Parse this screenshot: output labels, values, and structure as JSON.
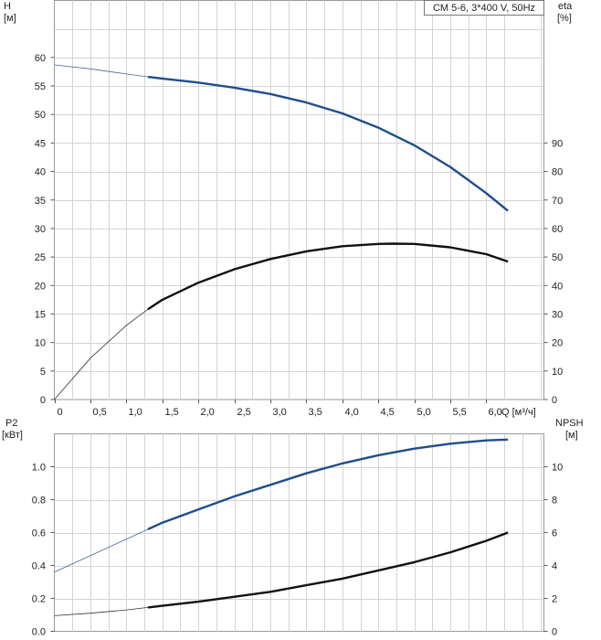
{
  "chart_data": [
    {
      "type": "line",
      "title": "CM 5-6, 3*400 V, 50Hz",
      "left_axis_label": "H",
      "left_axis_unit": "[м]",
      "right_axis_label": "eta",
      "right_axis_unit": "[%]",
      "xlabel": "Q [м³/ч]",
      "xlim": [
        0,
        6.8
      ],
      "x_ticks": [
        "0",
        "0,5",
        "1,0",
        "1,5",
        "2,0",
        "2,5",
        "3,0",
        "3,5",
        "4,0",
        "4,5",
        "5,0",
        "5,5",
        "6,0"
      ],
      "ylim_left": [
        0,
        70
      ],
      "ylim_right": [
        0,
        140
      ],
      "left_ticks": [
        "0",
        "5",
        "10",
        "15",
        "20",
        "25",
        "30",
        "35",
        "40",
        "45",
        "50",
        "55",
        "60"
      ],
      "right_ticks": [
        "0",
        "10",
        "20",
        "30",
        "40",
        "50",
        "60",
        "70",
        "80",
        "90"
      ],
      "grid": true,
      "series": [
        {
          "axis": "left",
          "color": "#1f4e8c",
          "operating_range_start": 1.3,
          "x": [
            0,
            0.5,
            1.0,
            1.3,
            1.5,
            2.0,
            2.5,
            3.0,
            3.5,
            4.0,
            4.5,
            5.0,
            5.5,
            6.0,
            6.3
          ],
          "y": [
            58.7,
            58.0,
            57.1,
            56.6,
            56.3,
            55.6,
            54.7,
            53.6,
            52.1,
            50.2,
            47.7,
            44.6,
            40.8,
            36.2,
            33.1
          ]
        },
        {
          "axis": "right",
          "color": "#111111",
          "operating_range_start": 1.3,
          "x": [
            0,
            0.5,
            1.0,
            1.3,
            1.5,
            2.0,
            2.5,
            3.0,
            3.5,
            4.0,
            4.5,
            4.7,
            5.0,
            5.5,
            6.0,
            6.3
          ],
          "y": [
            0,
            14.5,
            26.0,
            31.7,
            35.0,
            41.0,
            45.7,
            49.3,
            52.0,
            53.8,
            54.6,
            54.7,
            54.6,
            53.4,
            51.0,
            48.4
          ]
        }
      ]
    },
    {
      "type": "line",
      "left_axis_label": "P2",
      "left_axis_unit": "[кВт]",
      "right_axis_label": "NPSH",
      "right_axis_unit": "[м]",
      "xlim": [
        0,
        6.8
      ],
      "ylim_left": [
        0,
        1.2
      ],
      "ylim_right": [
        0,
        12
      ],
      "left_ticks": [
        "0.0",
        "0.2",
        "0.4",
        "0.6",
        "0.8",
        "1.0"
      ],
      "right_ticks": [
        "0",
        "2",
        "4",
        "6",
        "8",
        "10"
      ],
      "grid": true,
      "series": [
        {
          "axis": "left",
          "color": "#1f4e8c",
          "operating_range_start": 1.3,
          "x": [
            0,
            0.5,
            1.0,
            1.3,
            1.5,
            2.0,
            2.5,
            3.0,
            3.5,
            4.0,
            4.5,
            5.0,
            5.5,
            6.0,
            6.3
          ],
          "y": [
            0.36,
            0.46,
            0.56,
            0.62,
            0.66,
            0.74,
            0.82,
            0.89,
            0.96,
            1.02,
            1.07,
            1.11,
            1.14,
            1.16,
            1.165
          ]
        },
        {
          "axis": "right",
          "color": "#111111",
          "operating_range_start": 1.3,
          "x": [
            0,
            0.5,
            1.0,
            1.3,
            1.5,
            2.0,
            2.5,
            3.0,
            3.5,
            4.0,
            4.5,
            5.0,
            5.5,
            6.0,
            6.3
          ],
          "y": [
            0.95,
            1.1,
            1.3,
            1.45,
            1.55,
            1.8,
            2.1,
            2.4,
            2.8,
            3.2,
            3.7,
            4.2,
            4.8,
            5.5,
            6.0
          ]
        }
      ]
    }
  ]
}
